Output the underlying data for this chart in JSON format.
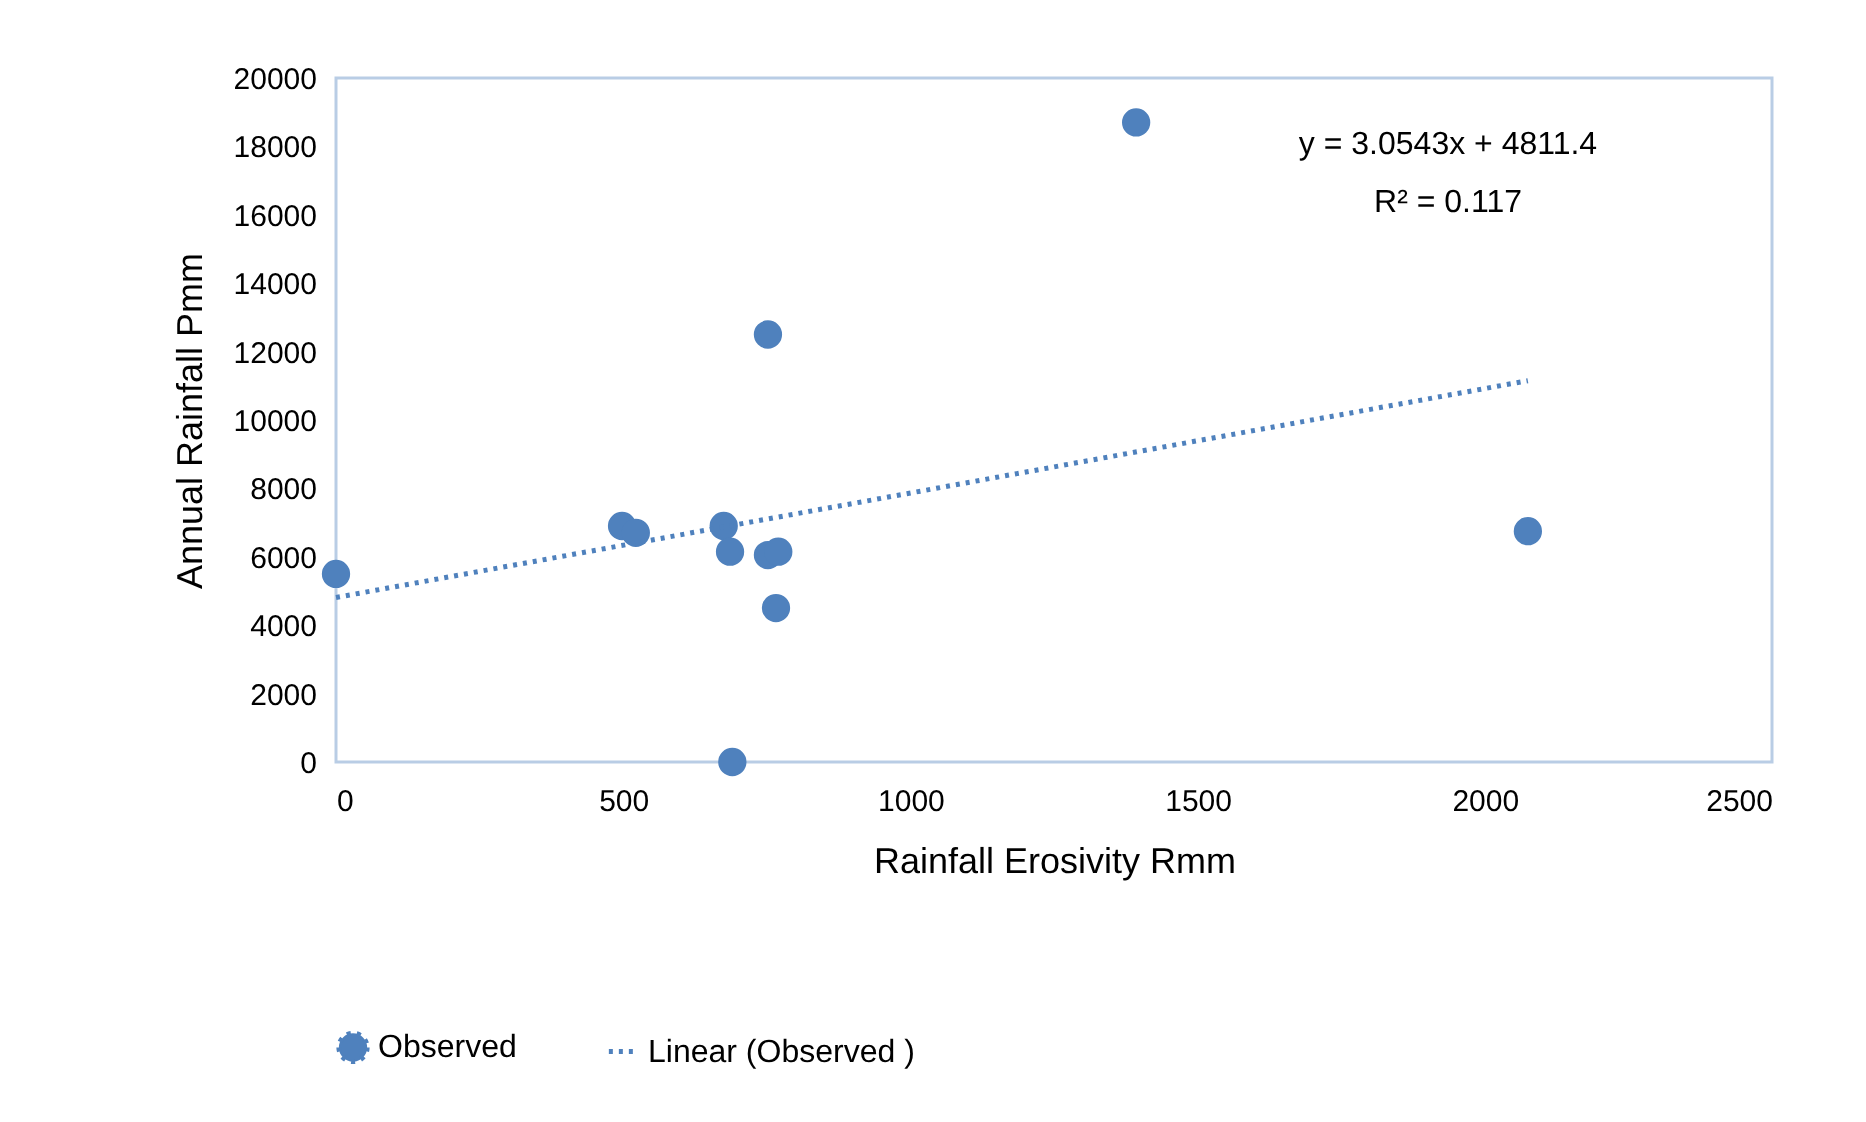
{
  "chart_data": {
    "type": "scatter",
    "xlabel": "Rainfall Erosivity Rmm",
    "ylabel": "Annual Rainfall Pmm",
    "xlim": [
      0,
      2500
    ],
    "xticks": [
      0,
      500,
      1000,
      1500,
      2000,
      2500
    ],
    "ylim": [
      0,
      20000
    ],
    "yticks": [
      0,
      2000,
      4000,
      6000,
      8000,
      10000,
      12000,
      14000,
      16000,
      18000,
      20000
    ],
    "grid": false,
    "legend": "bottom",
    "marker": "circle",
    "series": [
      {
        "name": "Observed",
        "color": "#4f81bd",
        "x": [
          0,
          498,
          522,
          675,
          686,
          690,
          752,
          752,
          770,
          766,
          1393,
          2075
        ],
        "values": [
          5500,
          6900,
          6700,
          6900,
          6150,
          0,
          12500,
          6050,
          6150,
          4500,
          18700,
          6750
        ]
      },
      {
        "name": "Linear (Observed )",
        "type": "line",
        "line_style": "dotted",
        "marker": "none",
        "color": "#4f81bd",
        "x": [
          0,
          2075
        ],
        "values": [
          4811,
          11149
        ]
      }
    ],
    "annotations": [
      "y = 3.0543x + 4811.4",
      "R² = 0.117"
    ]
  }
}
